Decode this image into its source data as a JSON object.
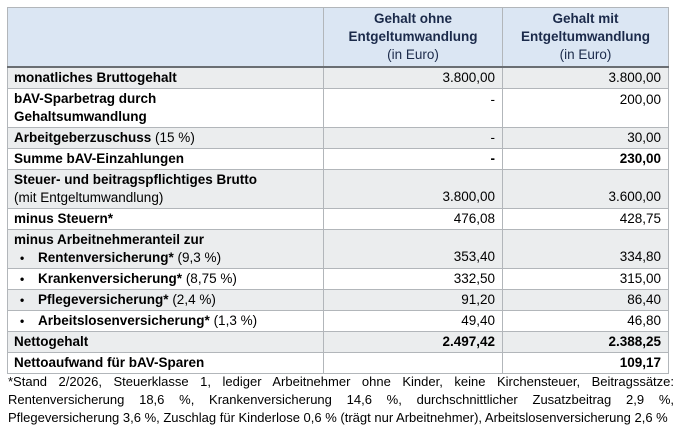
{
  "colors": {
    "header_bg": "#dbe6f3",
    "header_text": "#1b2a4a",
    "alt_row_bg": "#ebedee",
    "border": "#b2b6ba",
    "header_divider": "#6a6e72",
    "text": "#000000"
  },
  "table": {
    "bullet_glyph": "•",
    "header": {
      "label_col": "",
      "col_ohne": {
        "line1": "Gehalt ohne",
        "line2": "Entgeltumwandlung",
        "line3": "(in Euro)"
      },
      "col_mit": {
        "line1": "Gehalt mit",
        "line2": "Entgeltumwandlung",
        "line3": "(in Euro)"
      }
    },
    "rows": [
      {
        "label": "monatliches Bruttogehalt",
        "val1": "3.800,00",
        "val2": "3.800,00"
      },
      {
        "label_line1": "bAV-Sparbetrag durch",
        "label_line2": "Gehaltsumwandlung",
        "val1": "-",
        "val2": "200,00"
      },
      {
        "label": "Arbeitgeberzuschuss",
        "label_suffix": " (15 %)",
        "val1": "-",
        "val2": "30,00"
      },
      {
        "label": "Summe bAV-Einzahlungen",
        "val1": "-",
        "val2": "230,00"
      },
      {
        "label_line1": "Steuer- und beitragspflichtiges Brutto",
        "label_line2": "(mit Entgeltumwandlung)",
        "val1": "3.800,00",
        "val2": "3.600,00"
      },
      {
        "label": "minus Steuern*",
        "val1": "476,08",
        "val2": "428,75"
      },
      {
        "label_line1": "minus Arbeitnehmeranteil zur",
        "bullet_label": "Rentenversicherung*",
        "bullet_suffix": " (9,3 %)",
        "val1": "353,40",
        "val2": "334,80"
      },
      {
        "bullet_label": "Krankenversicherung*",
        "bullet_suffix": " (8,75 %)",
        "val1": "332,50",
        "val2": "315,00"
      },
      {
        "bullet_label": "Pflegeversicherung*",
        "bullet_suffix": " (2,4 %)",
        "val1": "91,20",
        "val2": "86,40"
      },
      {
        "bullet_label": "Arbeitslosenversicherung*",
        "bullet_suffix": " (1,3 %)",
        "val1": "49,40",
        "val2": "46,80"
      },
      {
        "label": "Nettogehalt",
        "val1": "2.497,42",
        "val2": "2.388,25"
      },
      {
        "label": "Nettoaufwand für bAV-Sparen",
        "val1": "",
        "val2": "109,17"
      }
    ]
  },
  "footnote": "*Stand 2/2026, Steuerklasse 1, lediger Arbeitnehmer ohne Kinder, keine Kirchensteuer, Beitragssätze: Rentenversicherung 18,6 %, Krankenversicherung 14,6 %, durchschnittlicher Zusatzbeitrag 2,9 %, Pflegeversicherung 3,6 %, Zuschlag für Kinderlose 0,6 % (trägt nur Arbeitnehmer), Arbeitslosenversicherung 2,6 %"
}
